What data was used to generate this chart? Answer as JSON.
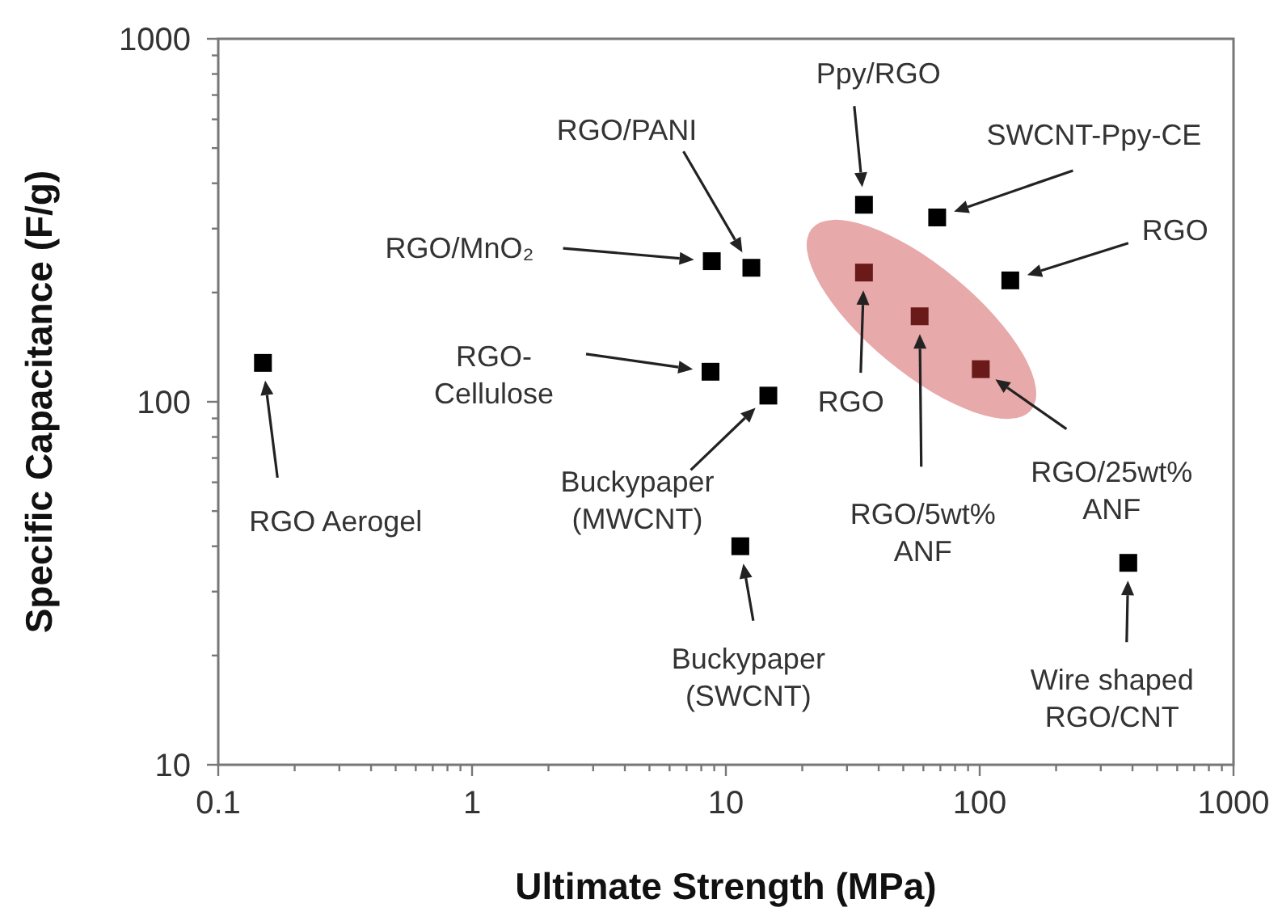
{
  "chart_data": {
    "type": "scatter",
    "xlabel": "Ultimate Strength (MPa)",
    "ylabel": "Specific Capacitance (F/g)",
    "log": "xy",
    "grid": false,
    "marker": "square",
    "xlim": [
      0.1,
      1000
    ],
    "ylim": [
      10,
      1000
    ],
    "xticks": [
      0.1,
      {
        "value": 0.2,
        "label": null
      },
      {
        "value": 0.3,
        "label": null
      },
      {
        "value": 0.4,
        "label": null
      },
      {
        "value": 0.5,
        "label": null
      },
      {
        "value": 0.6,
        "label": null
      },
      {
        "value": 0.7,
        "label": null
      },
      {
        "value": 0.8,
        "label": null
      },
      {
        "value": 0.9,
        "label": null
      },
      1,
      {
        "value": 2,
        "label": null
      },
      {
        "value": 3,
        "label": null
      },
      {
        "value": 4,
        "label": null
      },
      {
        "value": 5,
        "label": null
      },
      {
        "value": 6,
        "label": null
      },
      {
        "value": 7,
        "label": null
      },
      {
        "value": 8,
        "label": null
      },
      {
        "value": 9,
        "label": null
      },
      10,
      {
        "value": 20,
        "label": null
      },
      {
        "value": 30,
        "label": null
      },
      {
        "value": 40,
        "label": null
      },
      {
        "value": 50,
        "label": null
      },
      {
        "value": 60,
        "label": null
      },
      {
        "value": 70,
        "label": null
      },
      {
        "value": 80,
        "label": null
      },
      {
        "value": 90,
        "label": null
      },
      100,
      {
        "value": 200,
        "label": null
      },
      {
        "value": 300,
        "label": null
      },
      {
        "value": 400,
        "label": null
      },
      {
        "value": 500,
        "label": null
      },
      {
        "value": 600,
        "label": null
      },
      {
        "value": 700,
        "label": null
      },
      {
        "value": 800,
        "label": null
      },
      {
        "value": 900,
        "label": null
      },
      1000
    ],
    "yticks": [
      10,
      {
        "value": 20,
        "label": null
      },
      {
        "value": 30,
        "label": null
      },
      {
        "value": 40,
        "label": null
      },
      {
        "value": 50,
        "label": null
      },
      {
        "value": 60,
        "label": null
      },
      {
        "value": 70,
        "label": null
      },
      {
        "value": 80,
        "label": null
      },
      {
        "value": 90,
        "label": null
      },
      100,
      {
        "value": 200,
        "label": null
      },
      {
        "value": 300,
        "label": null
      },
      {
        "value": 400,
        "label": null
      },
      {
        "value": 500,
        "label": null
      },
      {
        "value": 600,
        "label": null
      },
      {
        "value": 700,
        "label": null
      },
      {
        "value": 800,
        "label": null
      },
      {
        "value": 900,
        "label": null
      },
      1000
    ],
    "series": [
      {
        "color": "#000000",
        "x": [
          0.15,
          8.8,
          12.6,
          35,
          68,
          132,
          8.7,
          14.7,
          11.4,
          385
        ],
        "values": [
          128,
          244,
          234,
          349,
          322,
          216,
          121,
          104,
          40,
          36
        ]
      },
      {
        "color": "#6b1a1a",
        "x": [
          35,
          58,
          101
        ],
        "values": [
          227,
          172,
          123
        ]
      }
    ],
    "annotations": [
      "RGO Aerogel",
      "RGO/MnO₂",
      "RGO/PANI",
      "RGO-\nCellulose",
      "Buckypaper\n(MWCNT)",
      "Buckypaper\n(SWCNT)",
      "Ppy/RGO",
      "SWCNT-Ppy-CE",
      "RGO",
      "RGO",
      "RGO/5wt%\nANF",
      "RGO/25wt%\nANF",
      "Wire shaped\nRGO/CNT"
    ]
  }
}
